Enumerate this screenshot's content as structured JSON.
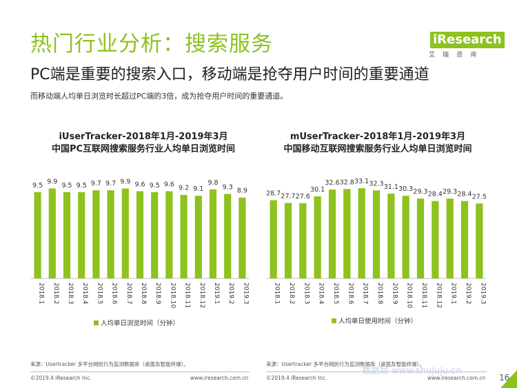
{
  "header": {
    "title": "热门行业分析：搜索服务",
    "subtitle": "PC端是重要的搜索入口，移动端是抢夺用户时间的重要通道",
    "description": "而移动端人均单日浏览时长超过PC端的3倍，成为抢夺用户时间的重要通道。"
  },
  "logo": {
    "text": "iResearch",
    "cn": "艾瑞咨询"
  },
  "colors": {
    "accent": "#8dc21f",
    "bar": "#8dc21f"
  },
  "chart_data": [
    {
      "type": "bar",
      "title": "iUserTracker-2018年1月-2019年3月",
      "subtitle": "中国PC互联网搜索服务行业人均单日浏览时间",
      "categories": [
        "2018.1",
        "2018.2",
        "2018.3",
        "2018.4",
        "2018.5",
        "2018.6",
        "2018.7",
        "2018.8",
        "2018.9",
        "2018.10",
        "2018.11",
        "2018.12",
        "2019.1",
        "2019.2",
        "2019.3"
      ],
      "series": [
        {
          "name": "人均单日浏览时间（分钟）",
          "values": [
            9.5,
            9.9,
            9.5,
            9.5,
            9.7,
            9.7,
            9.9,
            9.6,
            9.5,
            9.6,
            9.2,
            9.1,
            9.8,
            9.3,
            8.9
          ]
        }
      ],
      "value_labels": [
        "9.5",
        "9.9",
        "9.5",
        "9.5",
        "9.7",
        "9.7",
        "9.9",
        "9.6",
        "9.5",
        "9.6",
        "9.2",
        "9.1",
        "9.8",
        "9.3",
        "8.9"
      ],
      "ylim": [
        0,
        13.2
      ],
      "legend": "bottom",
      "source": "来源：Usertracker 多平台网民行为监测数据库（桌面及智能终端）。",
      "copyright": "©2019.4 iResearch Inc.",
      "website": "www.iresearch.com.cn"
    },
    {
      "type": "bar",
      "title": "mUserTracker-2018年1月-2019年3月",
      "subtitle": "中国移动互联网搜索服务行业人均单日浏览时间",
      "categories": [
        "2018.1",
        "2018.2",
        "2018.3",
        "2018.4",
        "2018.5",
        "2018.6",
        "2018.7",
        "2018.8",
        "2018.9",
        "2018.10",
        "2018.11",
        "2018.12",
        "2019.1",
        "2019.2",
        "2019.3"
      ],
      "series": [
        {
          "name": "人均单日使用时间（分钟）",
          "values": [
            28.7,
            27.7,
            27.6,
            30.1,
            32.6,
            32.8,
            33.1,
            32.3,
            31.1,
            30.3,
            29.3,
            28.4,
            29.3,
            28.4,
            27.5
          ]
        }
      ],
      "value_labels": [
        "28.7",
        "27.7",
        "27.6",
        "30.1",
        "32.6",
        "32.8",
        "33.1",
        "32.3",
        "31.1",
        "30.3",
        "29.3",
        "28.4",
        "29.3",
        "28.4",
        "27.5"
      ],
      "ylim": [
        0,
        44
      ],
      "legend": "bottom",
      "source": "来源：Usertracker 多平台网民行为监测数据库（桌面及智能终端）。",
      "copyright": "©2019.4 iResearch Inc.",
      "website": "www.iresearch.com.cn"
    }
  ],
  "page_number": "16",
  "watermark": "数据局 www.shujuju.cn"
}
